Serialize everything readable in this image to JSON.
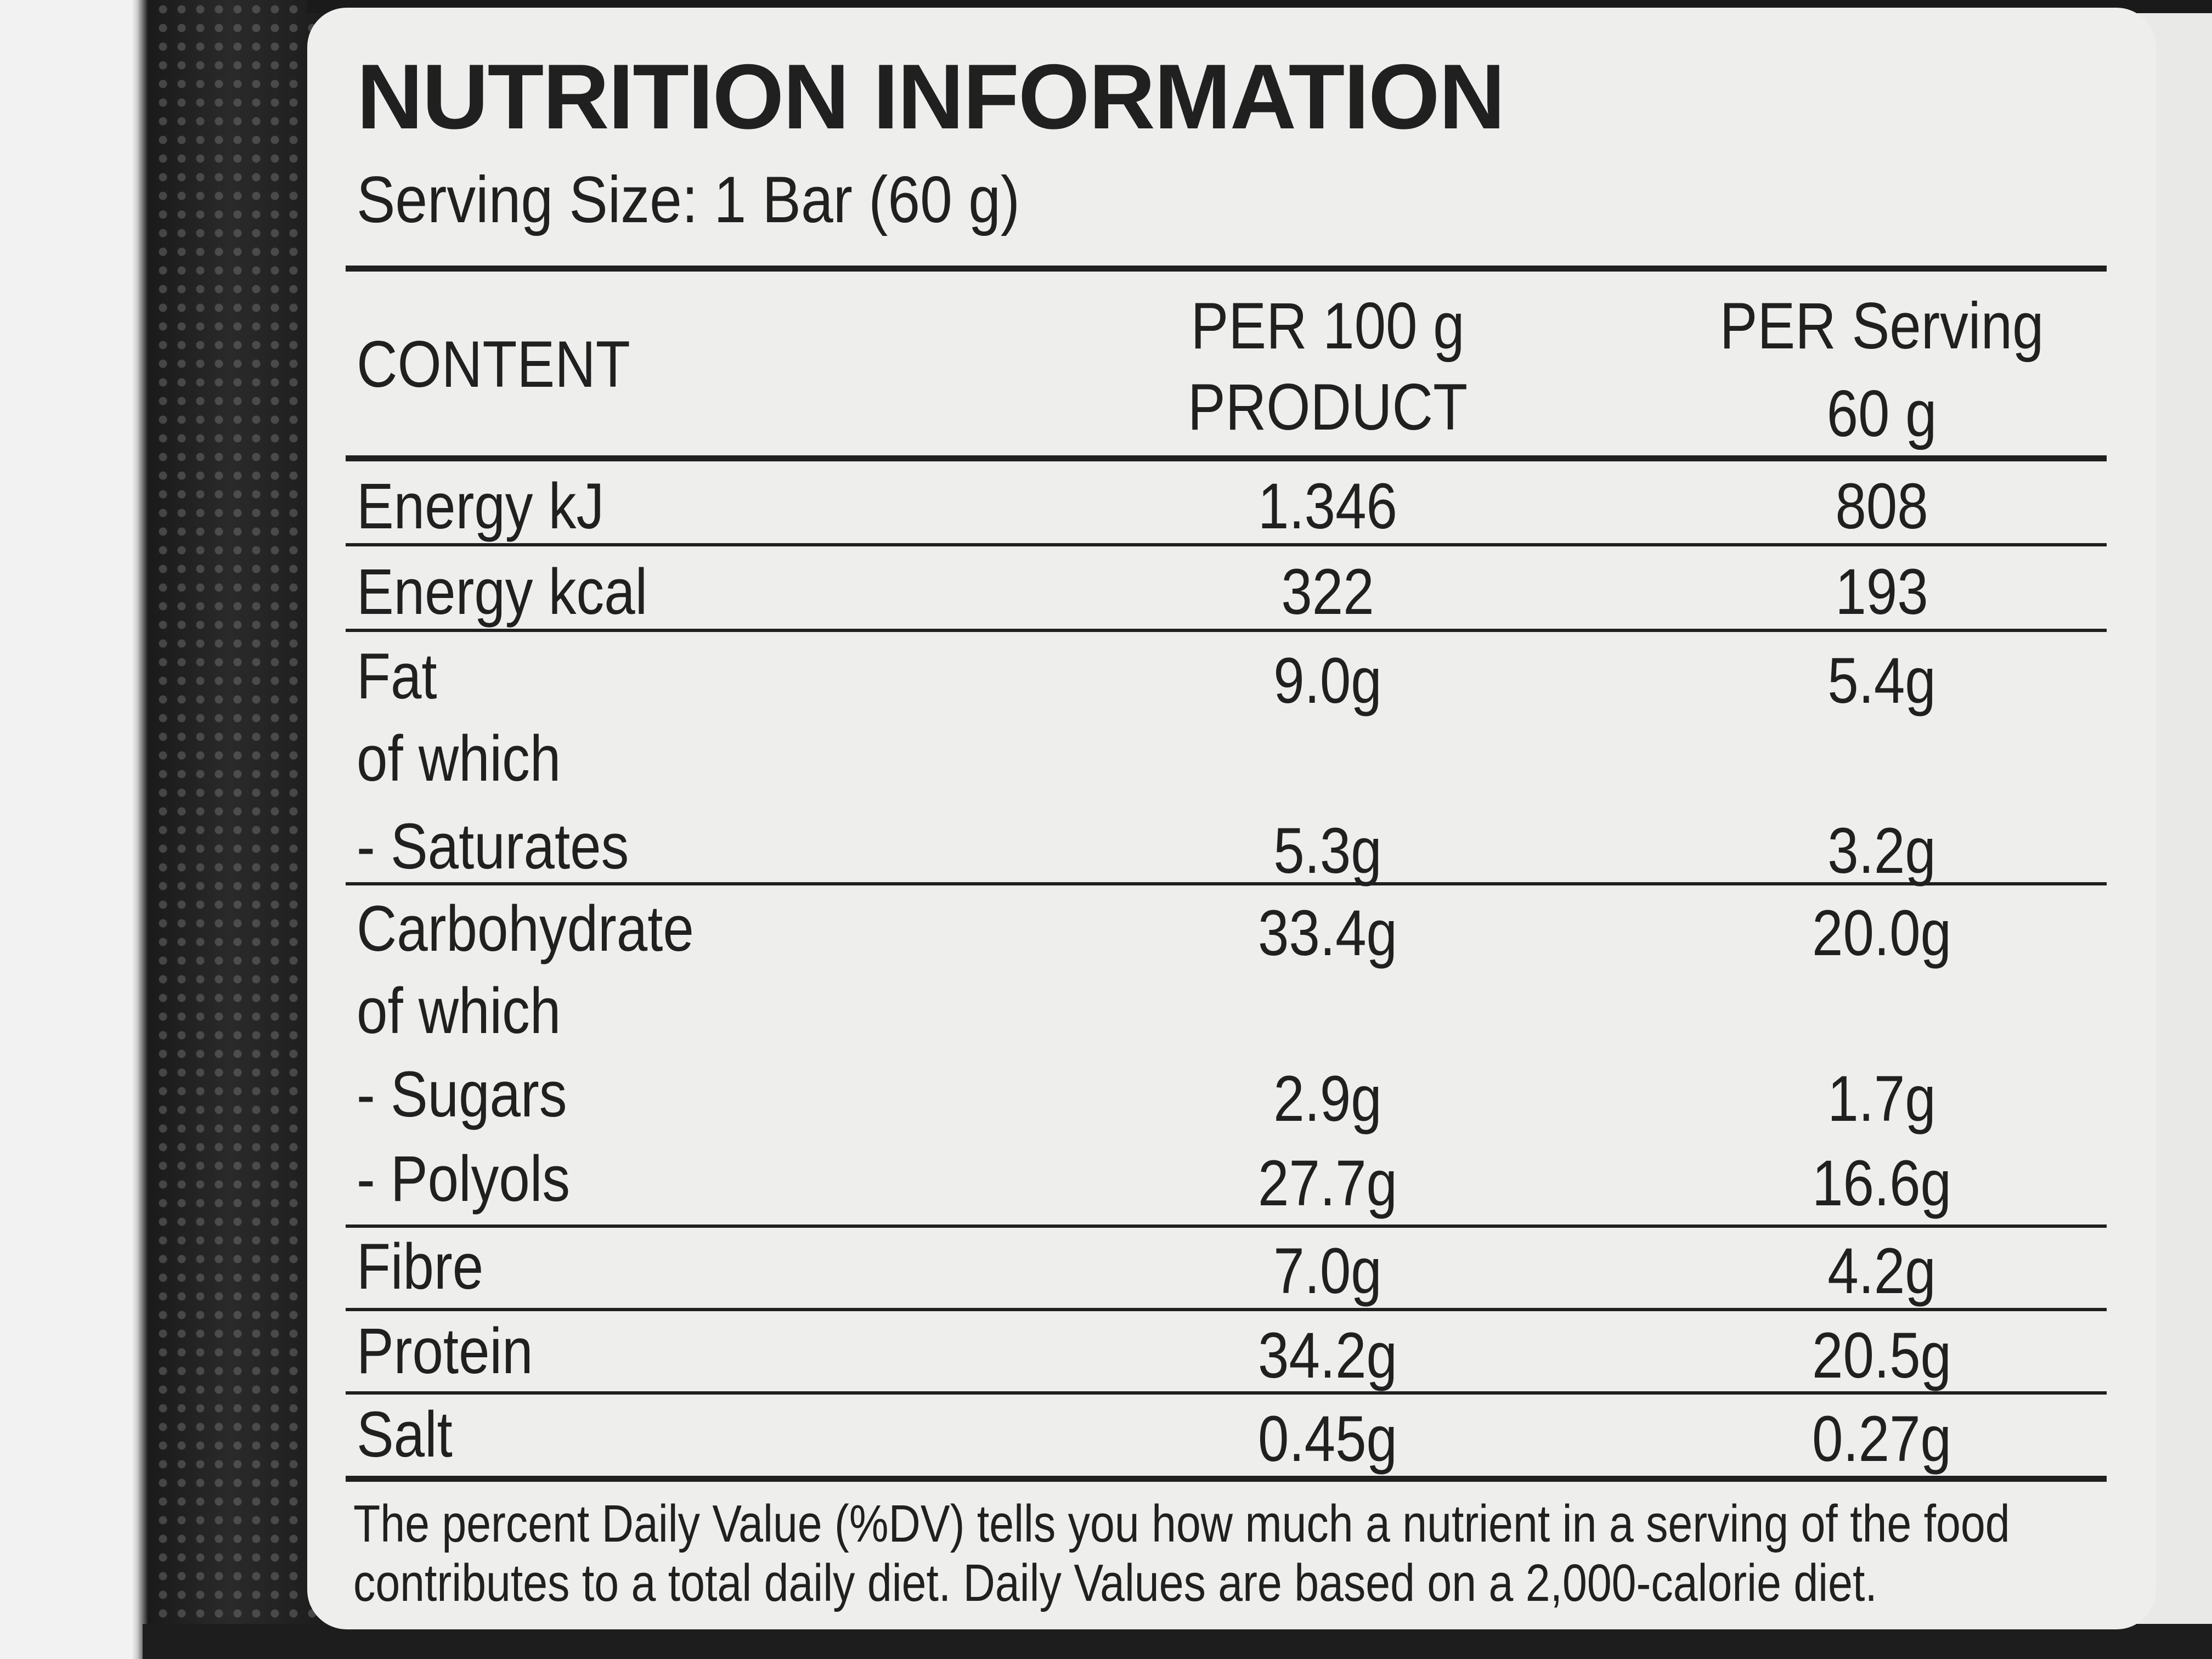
{
  "label": {
    "title": "NUTRITION INFORMATION",
    "serving_size": "Serving Size: 1 Bar (60 g)",
    "columns": {
      "content": "CONTENT",
      "per_100g_line1": "PER 100 g",
      "per_100g_line2": "PRODUCT",
      "per_serving_line1": "PER Serving",
      "per_serving_line2": "60 g"
    },
    "rows": {
      "energy_kj": {
        "name": "Energy kJ",
        "per_100g": "1.346",
        "per_serving": "808"
      },
      "energy_kcal": {
        "name": "Energy kcal",
        "per_100g": "322",
        "per_serving": "193"
      },
      "fat": {
        "name": "Fat",
        "per_100g": "9.0g",
        "per_serving": "5.4g"
      },
      "fat_of_which": {
        "name": "of which"
      },
      "saturates": {
        "name": "- Saturates",
        "per_100g": "5.3g",
        "per_serving": "3.2g"
      },
      "carbohydrate": {
        "name": "Carbohydrate",
        "per_100g": "33.4g",
        "per_serving": "20.0g"
      },
      "carb_of_which": {
        "name": "of which"
      },
      "sugars": {
        "name": "- Sugars",
        "per_100g": "2.9g",
        "per_serving": "1.7g"
      },
      "polyols": {
        "name": "- Polyols",
        "per_100g": "27.7g",
        "per_serving": "16.6g"
      },
      "fibre": {
        "name": "Fibre",
        "per_100g": "7.0g",
        "per_serving": "4.2g"
      },
      "protein": {
        "name": "Protein",
        "per_100g": "34.2g",
        "per_serving": "20.5g"
      },
      "salt": {
        "name": "Salt",
        "per_100g": "0.45g",
        "per_serving": "0.27g"
      }
    },
    "footnote_line1": "The percent Daily Value (%DV) tells you how much a nutrient in a serving of the food",
    "footnote_line2": "contributes to a total daily diet. Daily Values are based on a 2,000-calorie diet."
  },
  "colors": {
    "label_background": "#eeeeec",
    "text": "#202020",
    "package_black": "#1a1a1a"
  }
}
